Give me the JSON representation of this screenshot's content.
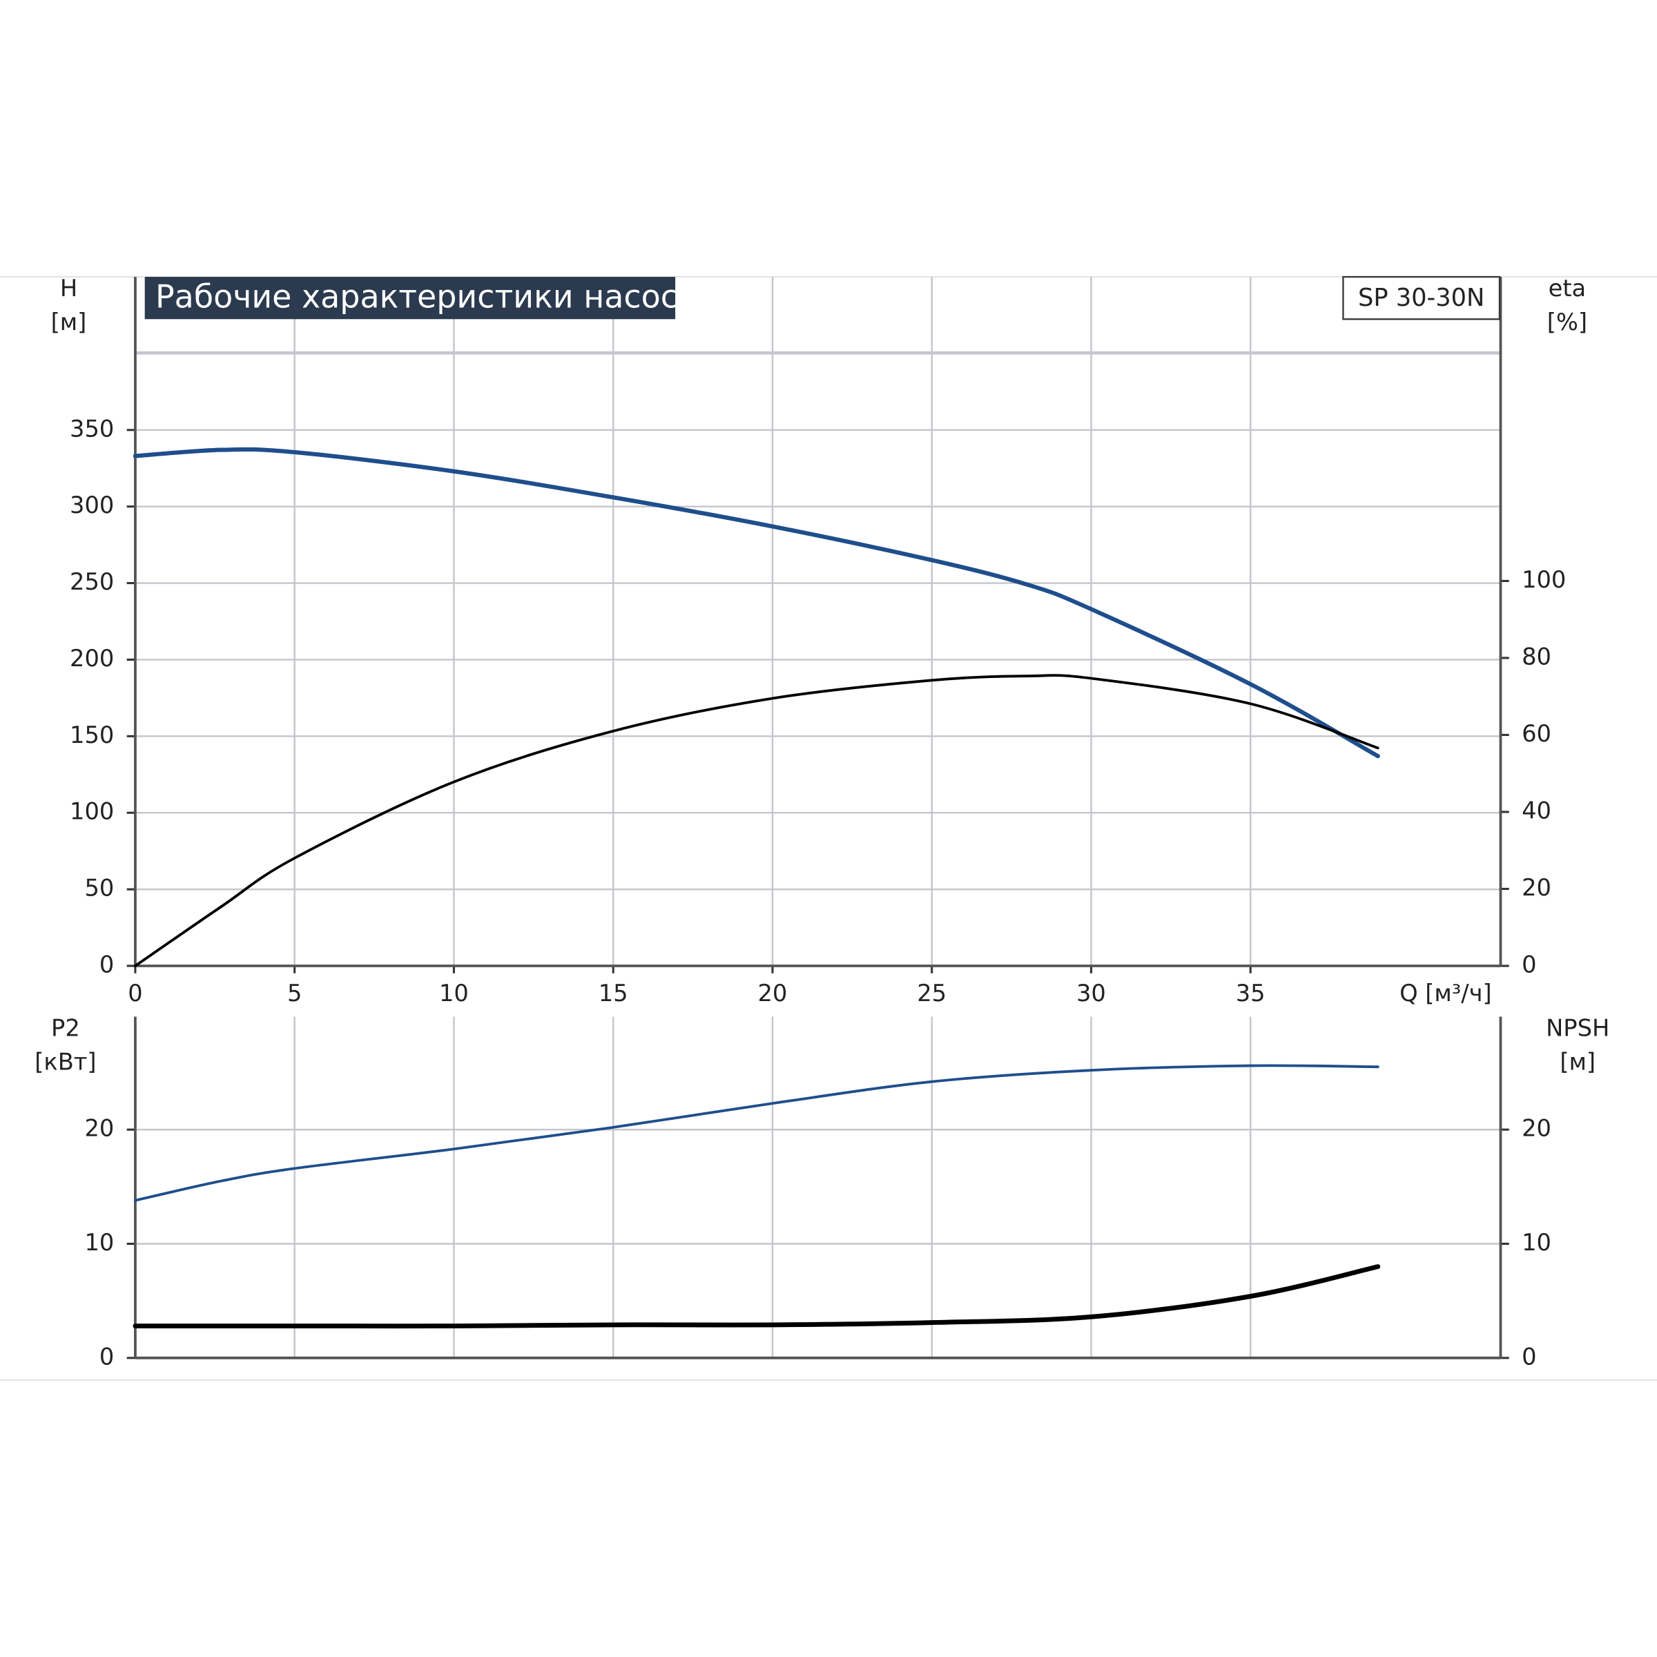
{
  "chart_data": [
    {
      "type": "line",
      "title": "Рабочие характеристики насоса",
      "model": "SP 30-30N",
      "xlabel": "Q [м³/ч]",
      "xlim": [
        0,
        42.85
      ],
      "xticks": [
        0,
        5,
        10,
        15,
        20,
        25,
        30,
        35
      ],
      "ylim": [
        0,
        450
      ],
      "yticks": [
        0,
        50,
        100,
        150,
        200,
        250,
        300,
        350
      ],
      "y2lim": [
        0,
        179
      ],
      "y2ticks": [
        0,
        20,
        40,
        60,
        80,
        100
      ],
      "grid": true,
      "x": [
        0,
        2.7,
        5,
        10,
        15,
        20,
        25,
        28,
        30,
        35,
        39
      ],
      "series": [
        {
          "name": "H",
          "unit": "[м]",
          "color": "#1f4e8c",
          "values": [
            333,
            337,
            335.5,
            323,
            306,
            287,
            265,
            249,
            233,
            184,
            137
          ]
        },
        {
          "name": "eta",
          "unit": "[%]",
          "color": "#000000",
          "axis": "y2",
          "values": [
            0,
            15.4,
            28,
            47.8,
            61,
            69.5,
            74.2,
            75.3,
            74.7,
            68.1,
            56.6
          ]
        }
      ]
    },
    {
      "type": "line",
      "xlim": [
        0,
        42.85
      ],
      "ylim": [
        0,
        29.9
      ],
      "yticks": [
        0,
        10,
        20
      ],
      "y2lim": [
        0,
        29.9
      ],
      "y2ticks": [
        0,
        10,
        20
      ],
      "grid": true,
      "x": [
        0,
        2.7,
        5,
        10,
        15,
        20,
        25,
        30,
        35,
        39
      ],
      "series": [
        {
          "name": "P2",
          "unit": "[кВт]",
          "color": "#1f4e8c",
          "values": [
            13.8,
            15.5,
            16.6,
            18.3,
            20.2,
            22.3,
            24.2,
            25.2,
            25.6,
            25.5
          ]
        },
        {
          "name": "NPSH",
          "unit": "[м]",
          "color": "#000000",
          "axis": "y2",
          "values": [
            2.8,
            2.8,
            2.8,
            2.8,
            2.9,
            2.9,
            3.1,
            3.6,
            5.4,
            8.0
          ]
        }
      ]
    }
  ]
}
